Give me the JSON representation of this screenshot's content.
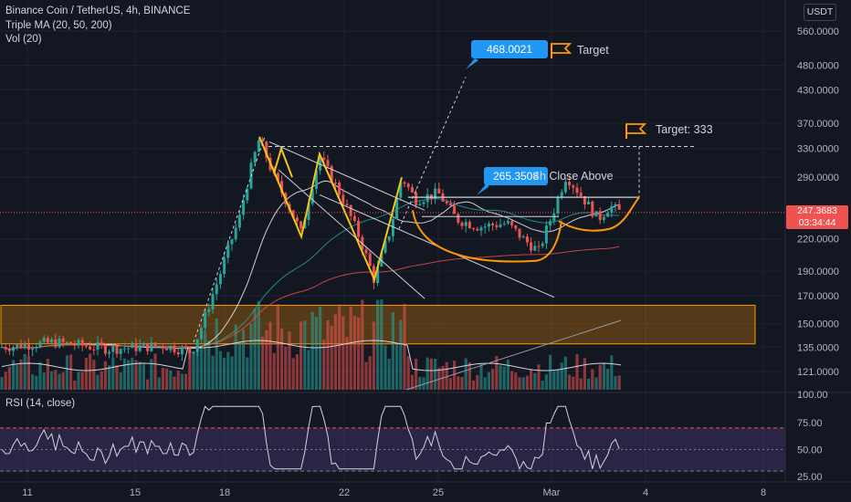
{
  "header": {
    "symbol_line": "Binance Coin / TetherUS, 4h, BINANCE",
    "ma_line": "Triple MA (20, 50, 200)",
    "vol_line": "Vol (20)",
    "rsi_line": "RSI (14, close)",
    "currency_button": "USDT"
  },
  "price_axis": {
    "ticks": [
      "560.0000",
      "480.0000",
      "430.0000",
      "370.0000",
      "330.0000",
      "290.0000",
      "220.0000",
      "190.0000",
      "170.0000",
      "150.0000",
      "135.0000",
      "121.0000",
      "100.00"
    ],
    "scale": "log",
    "last_price": "247.3683",
    "countdown": "03:34:44",
    "last_price_color": "#ef5350"
  },
  "rsi_axis": {
    "ticks": [
      "75.00",
      "50.00",
      "25.00"
    ],
    "upper": 70,
    "lower": 30
  },
  "time_axis": {
    "ticks": [
      "11",
      "15",
      "18",
      "22",
      "25",
      "Mar",
      "4",
      "8"
    ]
  },
  "annotations": {
    "target_high_value": "468.0021",
    "target_high_label": "Target",
    "target_333_label": "Target: 333",
    "breakout_value": "265.3508",
    "breakout_label": "4h Close Above"
  },
  "colors": {
    "background": "#131722",
    "up": "#26a69a",
    "down": "#ef5350",
    "drawing": "#f5c518",
    "cup": "#ff9800",
    "callout": "#2196f3",
    "rsi_band": "#7e57c2",
    "ma20": "#ffffff",
    "ma50": "#26a69a",
    "ma200": "#ef5350"
  },
  "chart_data": {
    "type": "candlestick",
    "title": "Binance Coin / TetherUS, 4h, BINANCE",
    "ylim": [
      100,
      600
    ],
    "key_prices": {
      "base_low": 130,
      "pump_high": 348,
      "triangle_low": 182,
      "neckline": 265,
      "cup_low": 200,
      "target": 333,
      "high_target": 468,
      "last": 247.37
    },
    "series": [
      {
        "name": "RSI (14, close)",
        "approx_range": [
          35,
          90
        ],
        "last": 53
      }
    ],
    "support_zone": [
      137,
      163
    ]
  }
}
